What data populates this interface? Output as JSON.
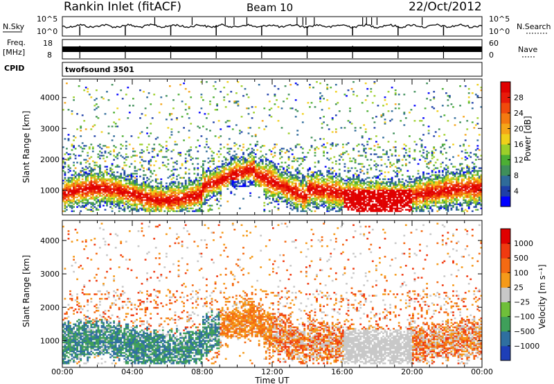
{
  "header": {
    "station": "Rankin Inlet (fitACF)",
    "beam": "Beam 10",
    "date": "22/Oct/2012",
    "program": "twofsound 3501"
  },
  "panels": {
    "nsky": {
      "label": "N.Sky",
      "ticks": [
        "10^5",
        "10^0"
      ]
    },
    "nsearch": {
      "label": "N.Search",
      "ticks": [
        "10^5",
        "10^0"
      ]
    },
    "freq": {
      "label_top": "Freq.",
      "label_unit": "[MHz]",
      "ticks": [
        "18",
        "8"
      ]
    },
    "nave": {
      "label": "Nave",
      "ticks": [
        "60",
        "0"
      ]
    },
    "cpid": {
      "label": "CPID"
    }
  },
  "colors": {
    "power": [
      "#0000ff",
      "#1e3fa8",
      "#2f6b9a",
      "#3f8f5a",
      "#4caf34",
      "#9ccf2a",
      "#f0d01a",
      "#f5a518",
      "#f47a10",
      "#f04a0c",
      "#e81a0a",
      "#e00000"
    ],
    "velocity": [
      "#e00000",
      "#f03a10",
      "#f46a12",
      "#f59a1a",
      "#c8c8c8",
      "#6fbf3a",
      "#3f9f5a",
      "#2f6fa0",
      "#1e3fb8"
    ]
  },
  "chart_data": [
    {
      "type": "heatmap",
      "name": "power",
      "xlabel": "",
      "ylabel": "Slant Range [km]",
      "x_ticks": [
        "00:00",
        "04:00",
        "08:00",
        "12:00",
        "16:00",
        "20:00",
        "00:00"
      ],
      "y_ticks": [
        "1000",
        "2000",
        "3000",
        "4000"
      ],
      "ylim": [
        200,
        4600
      ],
      "xlim_hours": [
        0,
        24
      ],
      "colorbar_label": "Power [dB]",
      "colorbar_ticks": [
        "4",
        "8",
        "12",
        "16",
        "20",
        "24",
        "28"
      ],
      "colorbar_range": [
        0,
        30
      ]
    },
    {
      "type": "heatmap",
      "name": "velocity",
      "xlabel": "Time UT",
      "ylabel": "Slant Range [km]",
      "x_ticks": [
        "00:00",
        "04:00",
        "08:00",
        "12:00",
        "16:00",
        "20:00",
        "00:00"
      ],
      "y_ticks": [
        "1000",
        "2000",
        "3000",
        "4000"
      ],
      "ylim": [
        200,
        4600
      ],
      "xlim_hours": [
        0,
        24
      ],
      "colorbar_label": "Velocity [m s⁻¹]",
      "colorbar_ticks": [
        "1000",
        "500",
        "100",
        "25",
        "−25",
        "−100",
        "−500",
        "−1000"
      ]
    }
  ]
}
